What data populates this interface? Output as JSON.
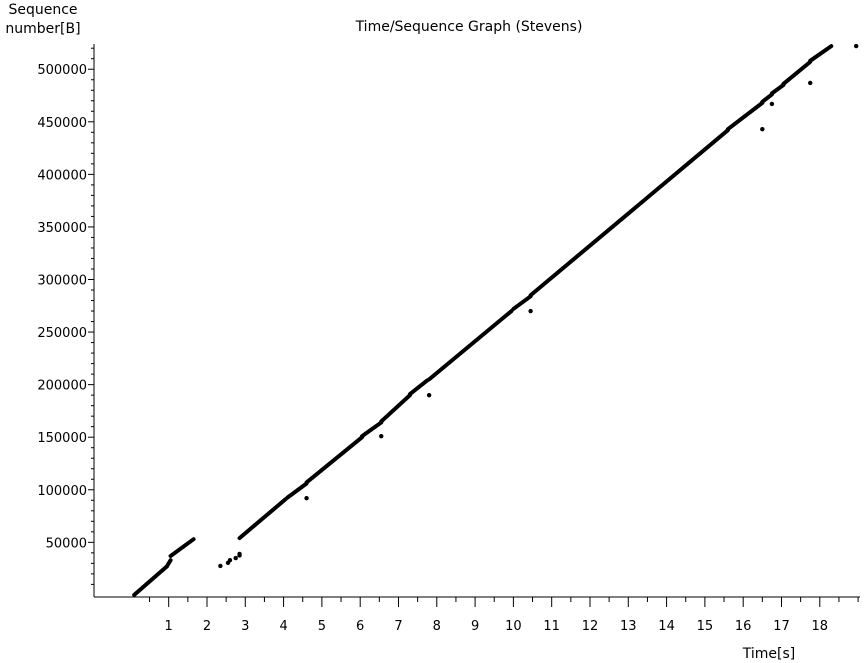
{
  "chart_data": {
    "type": "scatter",
    "title": "Time/Sequence Graph (Stevens)",
    "ylabel_line1": "Sequence",
    "ylabel_line2": "number[B]",
    "xlabel": "Time[s]",
    "xlim": [
      -0.95,
      19.05
    ],
    "ylim": [
      -2000,
      524000
    ],
    "x_ticks": [
      1,
      2,
      3,
      4,
      5,
      6,
      7,
      8,
      9,
      10,
      11,
      12,
      13,
      14,
      15,
      16,
      17,
      18
    ],
    "x_tick_labels": [
      "1",
      "2",
      "3",
      "4",
      "5",
      "6",
      "7",
      "8",
      "9",
      "10",
      "11",
      "12",
      "13",
      "14",
      "15",
      "16",
      "17",
      "18"
    ],
    "y_ticks": [
      50000,
      100000,
      150000,
      200000,
      250000,
      300000,
      350000,
      400000,
      450000,
      500000
    ],
    "y_tick_labels": [
      "50000",
      "100000",
      "150000",
      "200000",
      "250000",
      "300000",
      "350000",
      "400000",
      "450000",
      "500000"
    ],
    "segments": [
      {
        "x": [
          0.1,
          0.95
        ],
        "y": [
          0,
          27000
        ]
      },
      {
        "x": [
          0.95,
          1.05
        ],
        "y": [
          27000,
          33000
        ]
      },
      {
        "x": [
          1.05,
          1.65
        ],
        "y": [
          37000,
          53000
        ]
      },
      {
        "x": [
          2.85,
          4.05
        ],
        "y": [
          54000,
          91000
        ]
      },
      {
        "x": [
          4.1,
          4.6
        ],
        "y": [
          92500,
          106000
        ]
      },
      {
        "x": [
          4.6,
          6.05
        ],
        "y": [
          107000,
          150000
        ]
      },
      {
        "x": [
          6.05,
          6.55
        ],
        "y": [
          151000,
          164000
        ]
      },
      {
        "x": [
          6.55,
          7.3
        ],
        "y": [
          165000,
          190000
        ]
      },
      {
        "x": [
          7.3,
          7.75
        ],
        "y": [
          191000,
          204000
        ]
      },
      {
        "x": [
          7.8,
          9.95
        ],
        "y": [
          205000,
          270000
        ]
      },
      {
        "x": [
          10.0,
          10.45
        ],
        "y": [
          272000,
          284000
        ]
      },
      {
        "x": [
          10.45,
          15.6
        ],
        "y": [
          285000,
          442000
        ]
      },
      {
        "x": [
          15.6,
          16.5
        ],
        "y": [
          443000,
          468000
        ]
      },
      {
        "x": [
          16.5,
          16.75
        ],
        "y": [
          469000,
          476000
        ]
      },
      {
        "x": [
          16.75,
          17.05
        ],
        "y": [
          477000,
          485000
        ]
      },
      {
        "x": [
          17.05,
          17.75
        ],
        "y": [
          486000,
          507000
        ]
      },
      {
        "x": [
          17.75,
          18.3
        ],
        "y": [
          508000,
          522000
        ]
      }
    ],
    "points": [
      {
        "x": 2.35,
        "y": 27500
      },
      {
        "x": 2.55,
        "y": 30500
      },
      {
        "x": 2.6,
        "y": 33000
      },
      {
        "x": 2.75,
        "y": 35000
      },
      {
        "x": 2.85,
        "y": 37500
      },
      {
        "x": 2.85,
        "y": 39000
      },
      {
        "x": 4.6,
        "y": 92000
      },
      {
        "x": 6.55,
        "y": 151000
      },
      {
        "x": 7.8,
        "y": 190000
      },
      {
        "x": 10.45,
        "y": 270000
      },
      {
        "x": 16.5,
        "y": 443000
      },
      {
        "x": 16.75,
        "y": 467000
      },
      {
        "x": 17.75,
        "y": 487000
      },
      {
        "x": 18.95,
        "y": 522000
      }
    ],
    "grid": false,
    "color": "#000000"
  }
}
